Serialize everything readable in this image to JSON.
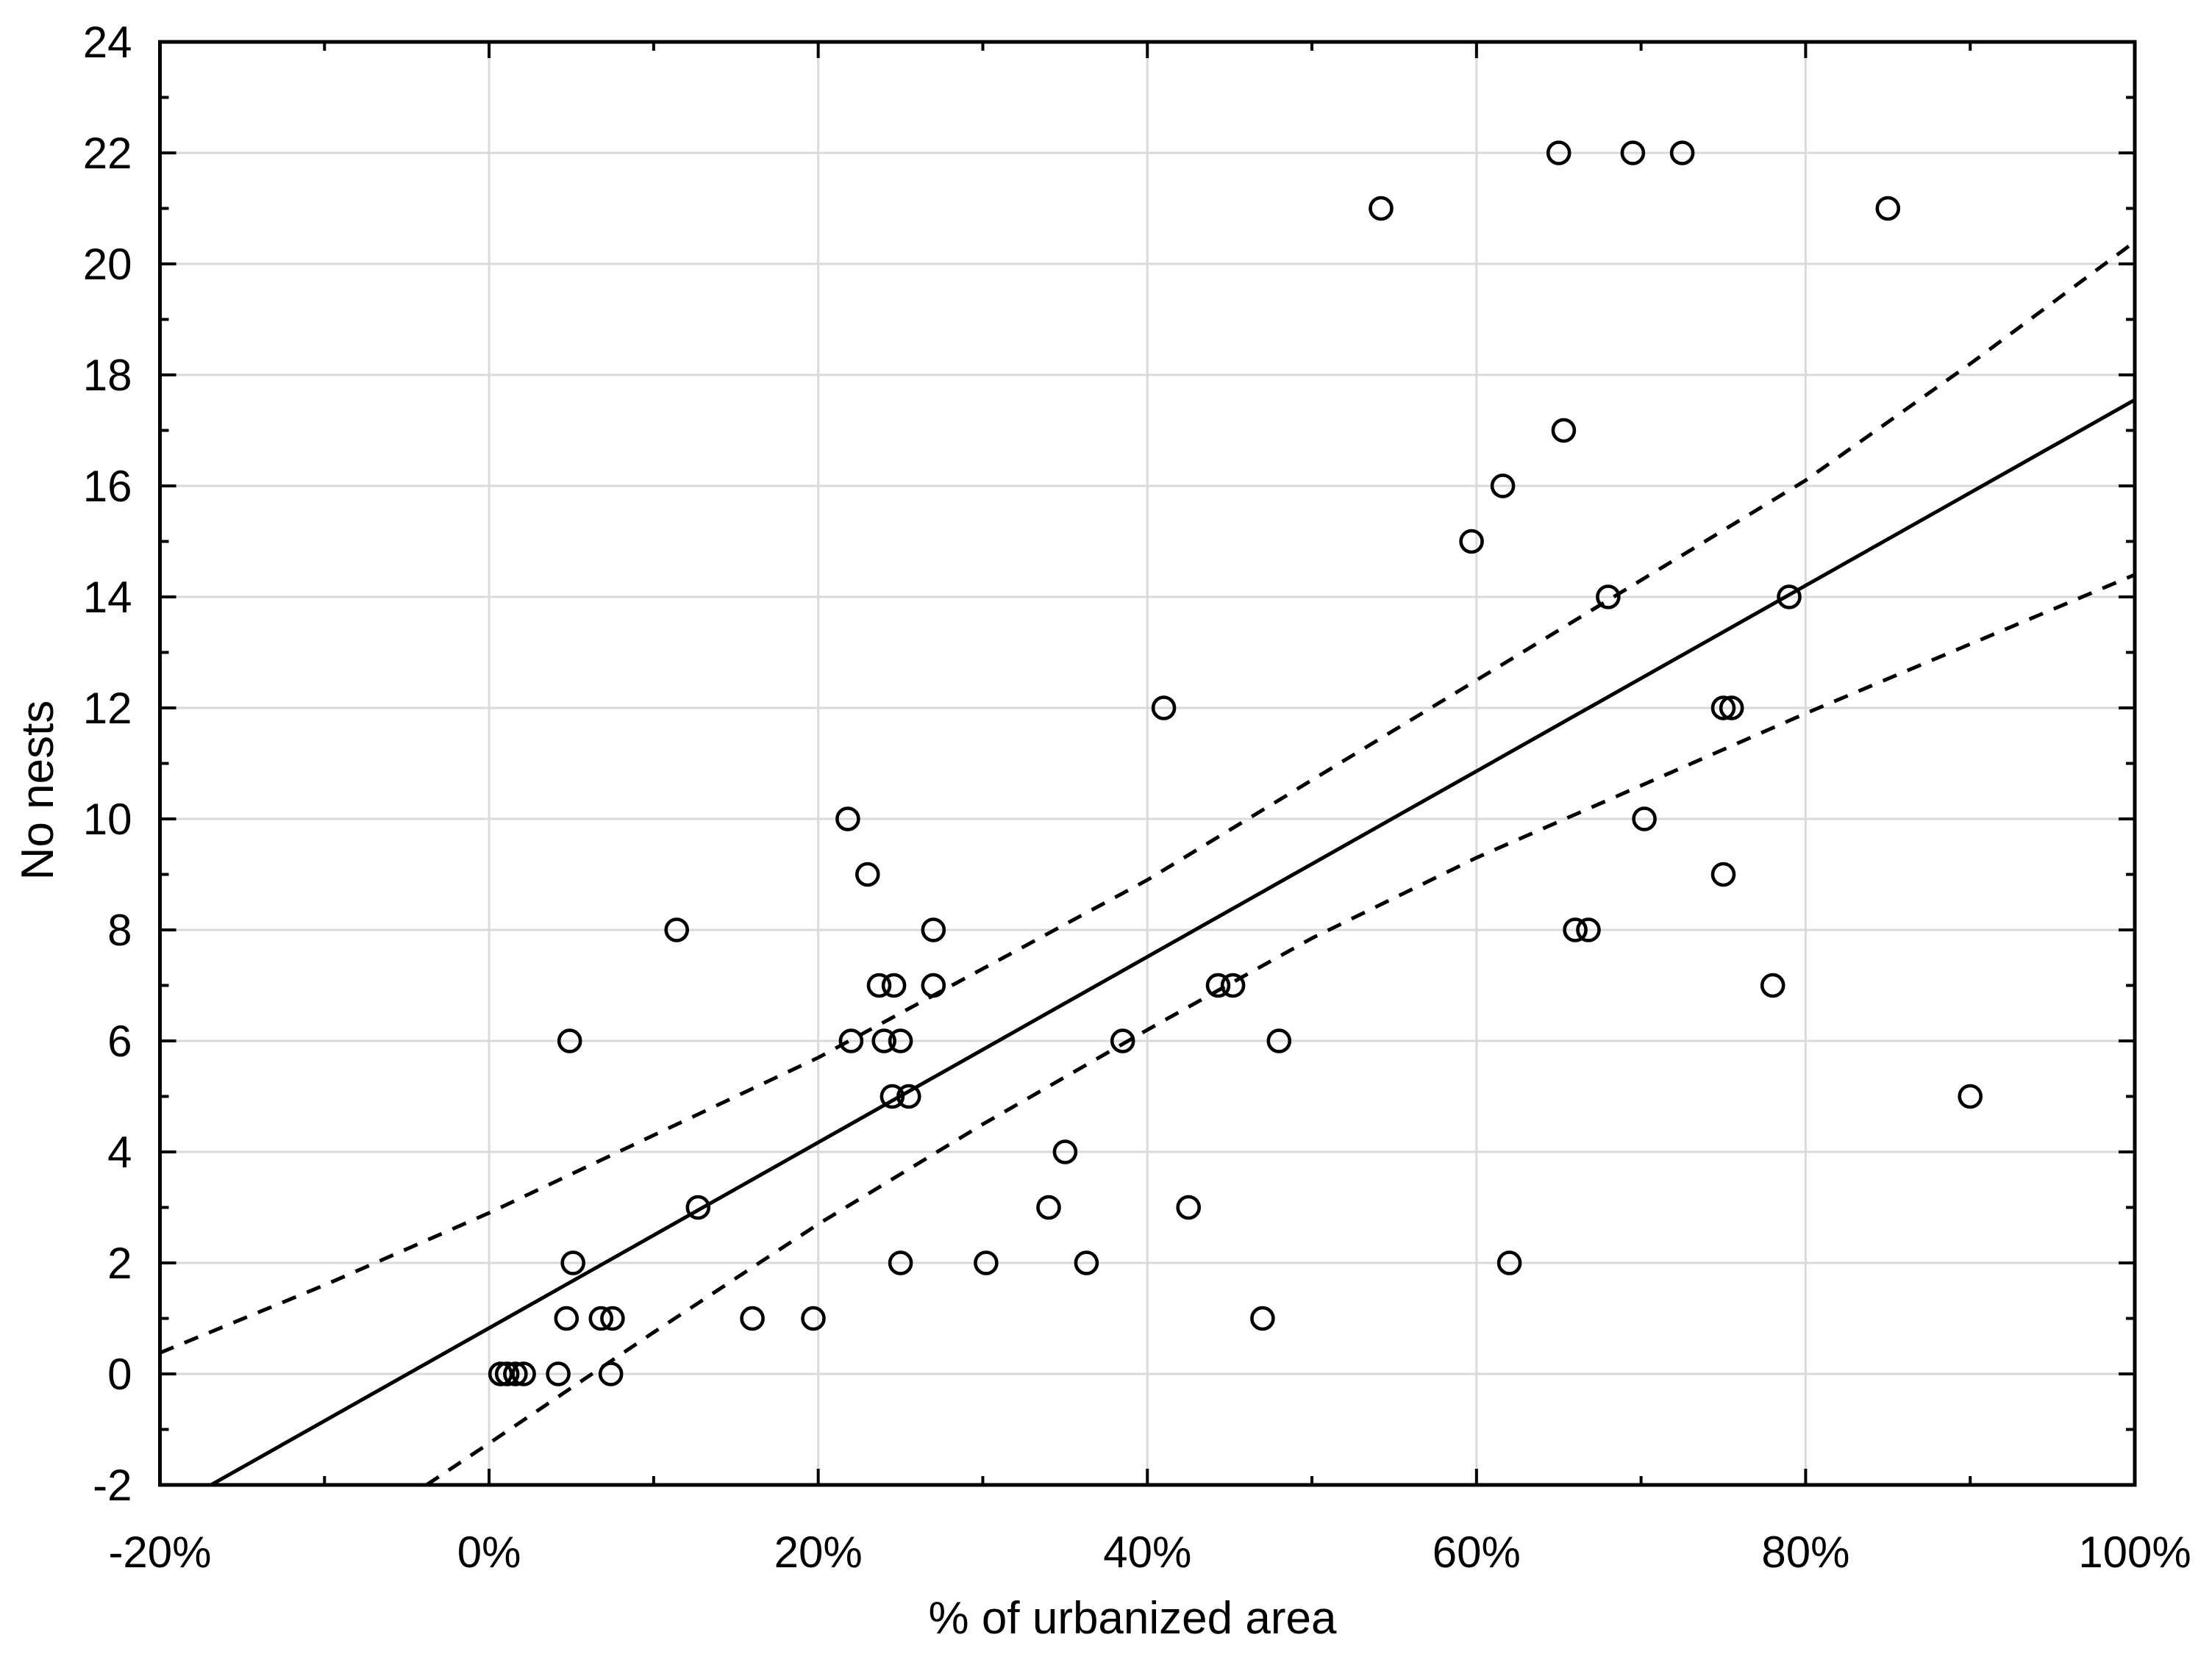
{
  "figure": {
    "background": "#ffffff",
    "frame_color": "#000000",
    "grid_color": "#dadada",
    "marker_color": "#000000",
    "line_color": "#000000"
  },
  "chart_data": {
    "type": "scatter",
    "title": "",
    "xlabel": "% of urbanized area",
    "ylabel": "No nests",
    "xlim": [
      -20,
      100
    ],
    "ylim": [
      -2,
      24
    ],
    "grid": "major-both",
    "legend": "none",
    "x_major_ticks": [
      -20,
      0,
      20,
      40,
      60,
      80,
      100
    ],
    "x_tick_labels": [
      "-20%",
      "0%",
      "20%",
      "40%",
      "60%",
      "80%",
      "100%"
    ],
    "x_minor_ticks": [
      -10,
      10,
      30,
      50,
      70,
      90
    ],
    "y_major_ticks": [
      -2,
      0,
      2,
      4,
      6,
      8,
      10,
      12,
      14,
      16,
      18,
      20,
      22,
      24
    ],
    "y_tick_labels": [
      "-2",
      "0",
      "2",
      "4",
      "6",
      "8",
      "10",
      "12",
      "14",
      "16",
      "18",
      "20",
      "22",
      "24"
    ],
    "y_minor_ticks": [
      -1,
      1,
      3,
      5,
      7,
      9,
      11,
      13,
      15,
      17,
      19,
      21,
      23
    ],
    "points": [
      [
        0.7,
        0
      ],
      [
        1.1,
        0
      ],
      [
        1.6,
        0
      ],
      [
        2.1,
        0
      ],
      [
        4.2,
        0
      ],
      [
        7.4,
        0
      ],
      [
        4.7,
        1
      ],
      [
        6.8,
        1
      ],
      [
        7.5,
        1
      ],
      [
        16.0,
        1
      ],
      [
        19.7,
        1
      ],
      [
        47.0,
        1
      ],
      [
        5.1,
        2
      ],
      [
        25.0,
        2
      ],
      [
        30.2,
        2
      ],
      [
        36.3,
        2
      ],
      [
        62.0,
        2
      ],
      [
        12.7,
        3
      ],
      [
        34.0,
        3
      ],
      [
        42.5,
        3
      ],
      [
        35.0,
        4
      ],
      [
        24.5,
        5
      ],
      [
        25.5,
        5
      ],
      [
        90.0,
        5
      ],
      [
        4.9,
        6
      ],
      [
        22.0,
        6
      ],
      [
        24.0,
        6
      ],
      [
        25.0,
        6
      ],
      [
        38.5,
        6
      ],
      [
        48.0,
        6
      ],
      [
        23.7,
        7
      ],
      [
        24.6,
        7
      ],
      [
        27.0,
        7
      ],
      [
        44.3,
        7
      ],
      [
        45.2,
        7
      ],
      [
        78.0,
        7
      ],
      [
        11.4,
        8
      ],
      [
        27.0,
        8
      ],
      [
        66.0,
        8
      ],
      [
        66.8,
        8
      ],
      [
        23.0,
        9
      ],
      [
        75.0,
        9
      ],
      [
        21.8,
        10
      ],
      [
        70.2,
        10
      ],
      [
        41.0,
        12
      ],
      [
        75.0,
        12
      ],
      [
        75.5,
        12
      ],
      [
        68.0,
        14
      ],
      [
        79.0,
        14
      ],
      [
        59.7,
        15
      ],
      [
        61.6,
        16
      ],
      [
        65.3,
        17
      ],
      [
        54.2,
        21
      ],
      [
        85.0,
        21
      ],
      [
        65.0,
        22
      ],
      [
        69.5,
        22
      ],
      [
        72.5,
        22
      ]
    ],
    "regression_line": {
      "x": [
        -16.9,
        100
      ],
      "y": [
        -2,
        17.55
      ]
    },
    "ci_upper_dashed": [
      [
        -20,
        0.38
      ],
      [
        -10,
        1.6
      ],
      [
        0,
        2.9
      ],
      [
        10,
        4.3
      ],
      [
        20,
        5.7
      ],
      [
        30,
        7.3
      ],
      [
        40,
        8.9
      ],
      [
        50,
        10.7
      ],
      [
        60,
        12.5
      ],
      [
        70,
        14.3
      ],
      [
        80,
        16.1
      ],
      [
        90,
        18.2
      ],
      [
        100,
        20.4
      ]
    ],
    "ci_lower_dashed": [
      [
        -3.8,
        -2
      ],
      [
        0,
        -1.25
      ],
      [
        10,
        0.75
      ],
      [
        20,
        2.7
      ],
      [
        30,
        4.5
      ],
      [
        40,
        6.2
      ],
      [
        50,
        7.85
      ],
      [
        60,
        9.3
      ],
      [
        70,
        10.6
      ],
      [
        80,
        11.9
      ],
      [
        90,
        13.15
      ],
      [
        100,
        14.4
      ]
    ]
  }
}
